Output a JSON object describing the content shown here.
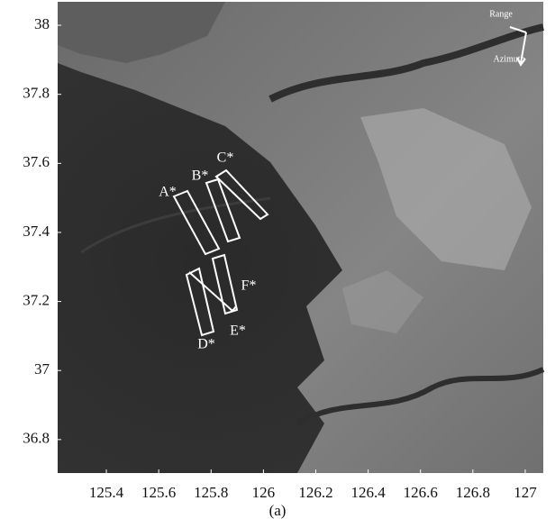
{
  "figure": {
    "xlim": [
      125.214,
      127.069
    ],
    "ylim": [
      36.703,
      38.068
    ],
    "xticks": [
      125.4,
      125.6,
      125.8,
      126,
      126.2,
      126.4,
      126.6,
      126.8,
      127
    ],
    "yticks": [
      38,
      37.8,
      37.6,
      37.4,
      37.2,
      37,
      36.8
    ],
    "regions": [
      "A*",
      "B*",
      "C*",
      "D*",
      "E*",
      "F*"
    ],
    "compass": {
      "range": "Range",
      "azimuth": "Azimuth"
    },
    "caption": "(a)"
  }
}
